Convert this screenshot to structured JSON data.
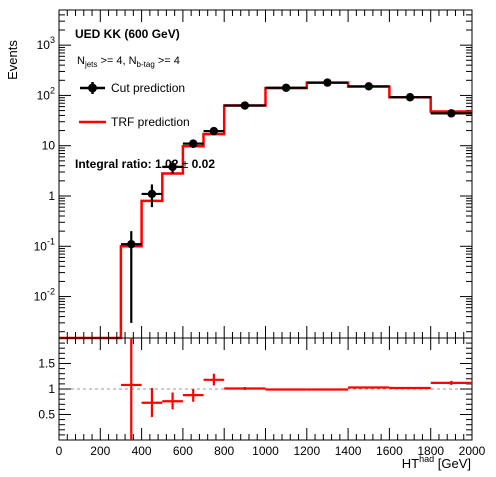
{
  "chart_data": [
    {
      "type": "histogram",
      "panel": "main",
      "ylabel": "Events",
      "yscale": "log",
      "ylim": [
        0.0015,
        5000
      ],
      "xlim": [
        0,
        2000
      ],
      "y_major_ticks": [
        {
          "value": 0.01,
          "base": "10",
          "exp": "-2"
        },
        {
          "value": 0.1,
          "base": "10",
          "exp": "-1"
        },
        {
          "value": 1,
          "label": "1"
        },
        {
          "value": 10,
          "label": "10"
        },
        {
          "value": 100,
          "base": "10",
          "exp": "2"
        },
        {
          "value": 1000,
          "base": "10",
          "exp": "3"
        }
      ],
      "bin_edges": [
        0,
        300,
        400,
        500,
        600,
        700,
        800,
        1000,
        1200,
        1400,
        1600,
        1800,
        2000
      ],
      "series": [
        {
          "name": "TRF prediction",
          "style": "step-line",
          "color": "#ff0000",
          "values": [
            0,
            0.1,
            0.8,
            2.8,
            9.8,
            17,
            63,
            140,
            180,
            150,
            92,
            48
          ]
        },
        {
          "name": "Cut prediction",
          "style": "points-with-errors",
          "color": "#000000",
          "points": [
            {
              "x": 350,
              "y": 0.11,
              "ylo": 0.003,
              "yhi": 0.2,
              "xhw": 50
            },
            {
              "x": 450,
              "y": 1.1,
              "ylo": 0.6,
              "yhi": 1.7,
              "xhw": 50
            },
            {
              "x": 550,
              "y": 3.8,
              "ylo": 2.8,
              "yhi": 5.0,
              "xhw": 50
            },
            {
              "x": 650,
              "y": 11,
              "ylo": 9,
              "yhi": 13,
              "xhw": 50
            },
            {
              "x": 750,
              "y": 19.5,
              "ylo": 16.5,
              "yhi": 22.5,
              "xhw": 50
            },
            {
              "x": 900,
              "y": 63,
              "ylo": 57,
              "yhi": 69,
              "xhw": 100
            },
            {
              "x": 1100,
              "y": 142,
              "ylo": 133,
              "yhi": 151,
              "xhw": 100
            },
            {
              "x": 1300,
              "y": 180,
              "ylo": 170,
              "yhi": 190,
              "xhw": 100
            },
            {
              "x": 1500,
              "y": 152,
              "ylo": 143,
              "yhi": 161,
              "xhw": 100
            },
            {
              "x": 1700,
              "y": 92,
              "ylo": 85,
              "yhi": 99,
              "xhw": 100
            },
            {
              "x": 1900,
              "y": 44,
              "ylo": 40,
              "yhi": 48,
              "xhw": 100
            }
          ]
        }
      ],
      "legend": {
        "title": "UED KK (600 GeV)",
        "cut_line": {
          "n_jets": "N",
          "n_jets_sub": "jets",
          "mid": " >= 4, N",
          "n_b_sub": "b-tag",
          "end": " >= 4"
        },
        "entries": [
          "Cut prediction",
          "TRF prediction"
        ],
        "placement": "top-left"
      },
      "annotation": {
        "prefix": "Integral ratio: 1.02 ",
        "pm": "±",
        "suffix": " 0.02"
      }
    },
    {
      "type": "ratio",
      "panel": "ratio",
      "xlabel_main": "HT",
      "xlabel_sup": "had",
      "xlabel_unit": " [GeV]",
      "xlim": [
        0,
        2000
      ],
      "ylim": [
        0,
        2
      ],
      "reference_line": 1,
      "x_ticks": [
        "0",
        "200",
        "400",
        "600",
        "800",
        "1000",
        "1200",
        "1400",
        "1600",
        "1800",
        "2000"
      ],
      "y_ticks": [
        "0.5",
        "1",
        "1.5"
      ],
      "color": "#ff0000",
      "points": [
        {
          "x": 350,
          "y": 1.08,
          "ylo": 0.0,
          "yhi": 2.0,
          "xhw": 50
        },
        {
          "x": 450,
          "y": 0.73,
          "ylo": 0.45,
          "yhi": 1.02,
          "xhw": 50
        },
        {
          "x": 550,
          "y": 0.76,
          "ylo": 0.6,
          "yhi": 0.93,
          "xhw": 50
        },
        {
          "x": 650,
          "y": 0.88,
          "ylo": 0.75,
          "yhi": 1.0,
          "xhw": 50
        },
        {
          "x": 750,
          "y": 1.18,
          "ylo": 1.07,
          "yhi": 1.3,
          "xhw": 50
        },
        {
          "x": 900,
          "y": 1.01,
          "ylo": 0.98,
          "yhi": 1.04,
          "xhw": 100
        },
        {
          "x": 1100,
          "y": 0.99,
          "ylo": 0.97,
          "yhi": 1.01,
          "xhw": 100
        },
        {
          "x": 1300,
          "y": 0.99,
          "ylo": 0.97,
          "yhi": 1.01,
          "xhw": 100
        },
        {
          "x": 1500,
          "y": 1.03,
          "ylo": 1.01,
          "yhi": 1.05,
          "xhw": 100
        },
        {
          "x": 1700,
          "y": 1.02,
          "ylo": 1.0,
          "yhi": 1.04,
          "xhw": 100
        },
        {
          "x": 1900,
          "y": 1.12,
          "ylo": 1.08,
          "yhi": 1.16,
          "xhw": 100
        }
      ]
    }
  ]
}
